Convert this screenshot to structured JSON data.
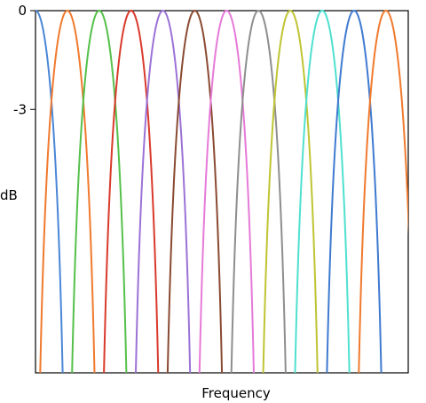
{
  "chart_data": {
    "type": "line",
    "title": "",
    "xlabel": "Frequency",
    "ylabel": "dB",
    "y_ticks": [
      {
        "value": 0,
        "label": "0"
      },
      {
        "value": -3,
        "label": "-3"
      }
    ],
    "ylim": [
      -11.0,
      0
    ],
    "xlim": [
      0,
      11.7
    ],
    "grid": false,
    "legend": "none",
    "lobe_half_width": 1.0,
    "series": [
      {
        "color": "#4a86d6",
        "center": 0.0
      },
      {
        "color": "#f07a2e",
        "center": 1.0
      },
      {
        "color": "#55c04a",
        "center": 2.0
      },
      {
        "color": "#d93a2c",
        "center": 3.0
      },
      {
        "color": "#9b72d6",
        "center": 4.0
      },
      {
        "color": "#8a4a32",
        "center": 5.0
      },
      {
        "color": "#e67ad8",
        "center": 6.0
      },
      {
        "color": "#8e8e8e",
        "center": 7.0
      },
      {
        "color": "#bfc433",
        "center": 8.0
      },
      {
        "color": "#4fe0cf",
        "center": 9.0
      },
      {
        "color": "#3f7ad0",
        "center": 10.0
      },
      {
        "color": "#f07a2e",
        "center": 11.0
      }
    ]
  }
}
